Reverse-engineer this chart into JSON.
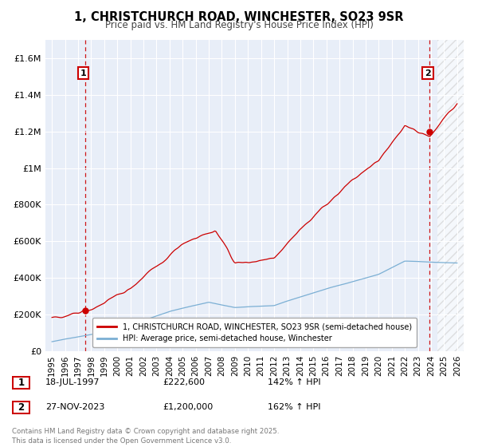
{
  "title_line1": "1, CHRISTCHURCH ROAD, WINCHESTER, SO23 9SR",
  "title_line2": "Price paid vs. HM Land Registry's House Price Index (HPI)",
  "xlim": [
    1994.5,
    2026.5
  ],
  "ylim": [
    0,
    1700000
  ],
  "yticks": [
    0,
    200000,
    400000,
    600000,
    800000,
    1000000,
    1200000,
    1400000,
    1600000
  ],
  "ytick_labels": [
    "£0",
    "£200K",
    "£400K",
    "£600K",
    "£800K",
    "£1M",
    "£1.2M",
    "£1.4M",
    "£1.6M"
  ],
  "xticks": [
    1995,
    1996,
    1997,
    1998,
    1999,
    2000,
    2001,
    2002,
    2003,
    2004,
    2005,
    2006,
    2007,
    2008,
    2009,
    2010,
    2011,
    2012,
    2013,
    2014,
    2015,
    2016,
    2017,
    2018,
    2019,
    2020,
    2021,
    2022,
    2023,
    2024,
    2025,
    2026
  ],
  "sale1_x": 1997.55,
  "sale1_y": 222600,
  "sale2_x": 2023.9,
  "sale2_y": 1200000,
  "red_line_color": "#cc0000",
  "blue_line_color": "#7bafd4",
  "dot_color": "#cc0000",
  "vline_color": "#cc0000",
  "background_color": "#e8eef8",
  "grid_color": "#ffffff",
  "legend_label_red": "1, CHRISTCHURCH ROAD, WINCHESTER, SO23 9SR (semi-detached house)",
  "legend_label_blue": "HPI: Average price, semi-detached house, Winchester",
  "table_row1_num": "1",
  "table_row1_date": "18-JUL-1997",
  "table_row1_price": "£222,600",
  "table_row1_hpi": "142% ↑ HPI",
  "table_row2_num": "2",
  "table_row2_date": "27-NOV-2023",
  "table_row2_price": "£1,200,000",
  "table_row2_hpi": "162% ↑ HPI",
  "footer": "Contains HM Land Registry data © Crown copyright and database right 2025.\nThis data is licensed under the Open Government Licence v3.0."
}
